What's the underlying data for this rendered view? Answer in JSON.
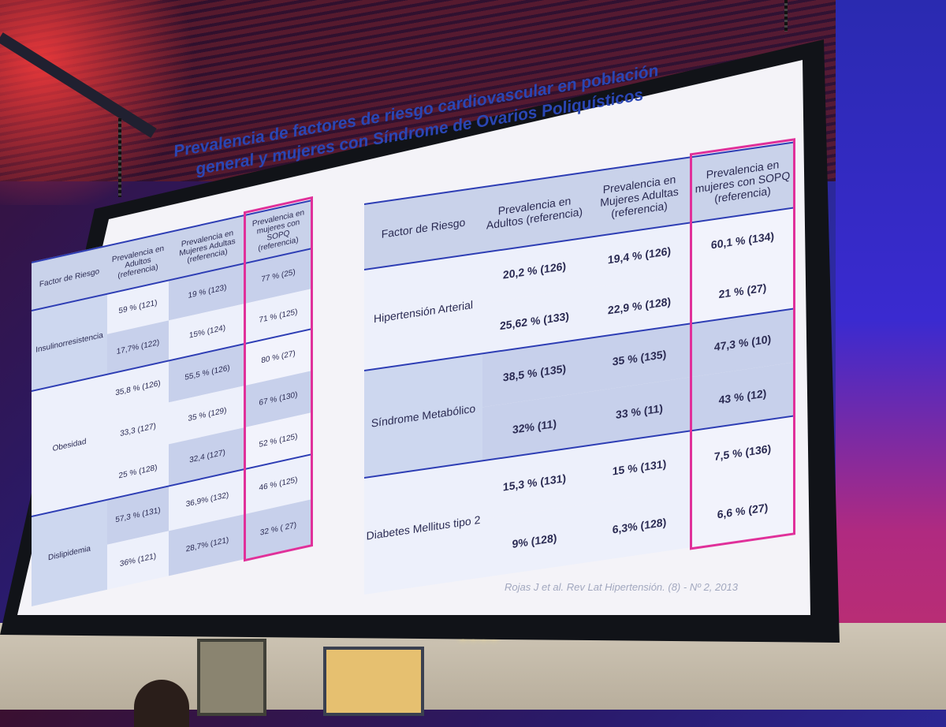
{
  "slide": {
    "title_line1": "Prevalencia de factores de riesgo cardiovascular en población",
    "title_line2": "general y mujeres con Síndrome de Ovarios Poliquísticos",
    "citation": "Rojas J et al. Rev Lat  Hipertensión. (8) - Nº 2, 2013"
  },
  "left_table": {
    "headers": [
      "Factor de Riesgo",
      "Prevalencia en Adultos (referencia)",
      "Prevalencia en Mujeres Adultas (referencia)",
      "Prevalencia en mujeres con SOPQ (referencia)"
    ],
    "factors": [
      "Insulinorresistencia",
      "Obesidad",
      "Dislipidemia"
    ],
    "rows": [
      [
        "59 % (121)",
        "19 %  (123)",
        "77 % (25)"
      ],
      [
        "17,7%  (122)",
        "15%  (124)",
        "71 % (125)"
      ],
      [
        "35,8 % (126)",
        "55,5 % (126)",
        "80 % (27)"
      ],
      [
        "33,3 (127)",
        "35 % (129)",
        "67 % (130)"
      ],
      [
        "25 %  (128)",
        "32,4  (127)",
        "52 % (125)"
      ],
      [
        "57,3 % (131)",
        "36,9%  (132)",
        "46 %  (125)"
      ],
      [
        "36%  (121)",
        "28,7%  (121)",
        "32 %  ( 27)"
      ]
    ]
  },
  "right_table": {
    "headers": [
      "Factor de Riesgo",
      "Prevalencia en Adultos (referencia)",
      "Prevalencia en Mujeres Adultas (referencia)",
      "Prevalencia en mujeres con SOPQ (referencia)"
    ],
    "factors": [
      "Hipertensión Arterial",
      "Síndrome Metabólico",
      "Diabetes Mellitus tipo 2"
    ],
    "rows": [
      [
        "20,2 %  (126)",
        "19,4 %  (126)",
        "60,1 %  (134)"
      ],
      [
        "25,62 %  (133)",
        "22,9 %  (128)",
        "21 %  (27)"
      ],
      [
        "38,5 %  (135)",
        "35 %  (135)",
        "47,3 %  (10)"
      ],
      [
        "32%  (11)",
        "33 %  (11)",
        "43 %  (12)"
      ],
      [
        "15,3 %  (131)",
        "15 %   (131)",
        "7,5 %  (136)"
      ],
      [
        "9%  (128)",
        "6,3%  (128)",
        "6,6 %  (27)"
      ]
    ]
  }
}
